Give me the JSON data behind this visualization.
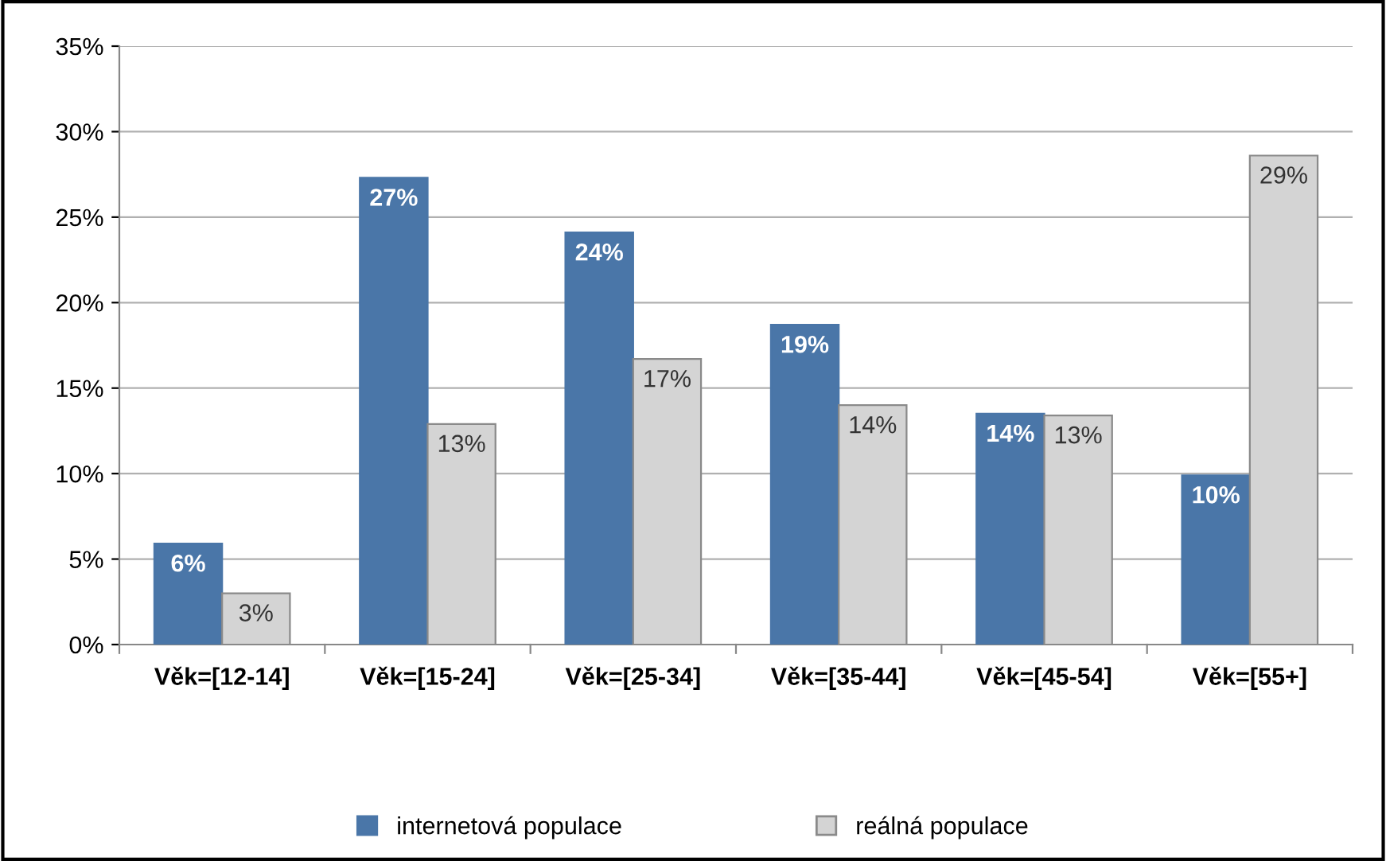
{
  "chart_data": {
    "type": "bar",
    "categories": [
      "Věk=[12-14]",
      "Věk=[15-24]",
      "Věk=[25-34]",
      "Věk=[35-44]",
      "Věk=[45-54]",
      "Věk=[55+]"
    ],
    "series": [
      {
        "name": "internetová populace",
        "color": "#4a76a8",
        "values": [
          5.9,
          27.3,
          24.1,
          18.7,
          13.5,
          9.9
        ],
        "value_labels": [
          "6%",
          "27%",
          "24%",
          "19%",
          "14%",
          "10%"
        ]
      },
      {
        "name": "reálná populace",
        "color": "#d4d4d4",
        "values": [
          3.0,
          12.9,
          16.7,
          14.0,
          13.4,
          28.6
        ],
        "value_labels": [
          "3%",
          "13%",
          "17%",
          "14%",
          "13%",
          "29%"
        ]
      }
    ],
    "ylim": [
      0,
      35
    ],
    "yticks": [
      {
        "value": 0,
        "label": "0%"
      },
      {
        "value": 5,
        "label": "5%"
      },
      {
        "value": 10,
        "label": "10%"
      },
      {
        "value": 15,
        "label": "15%"
      },
      {
        "value": 20,
        "label": "20%"
      },
      {
        "value": 25,
        "label": "25%"
      },
      {
        "value": 30,
        "label": "30%"
      },
      {
        "value": 35,
        "label": "35%"
      }
    ],
    "grid": "y",
    "legend": "bottom"
  }
}
